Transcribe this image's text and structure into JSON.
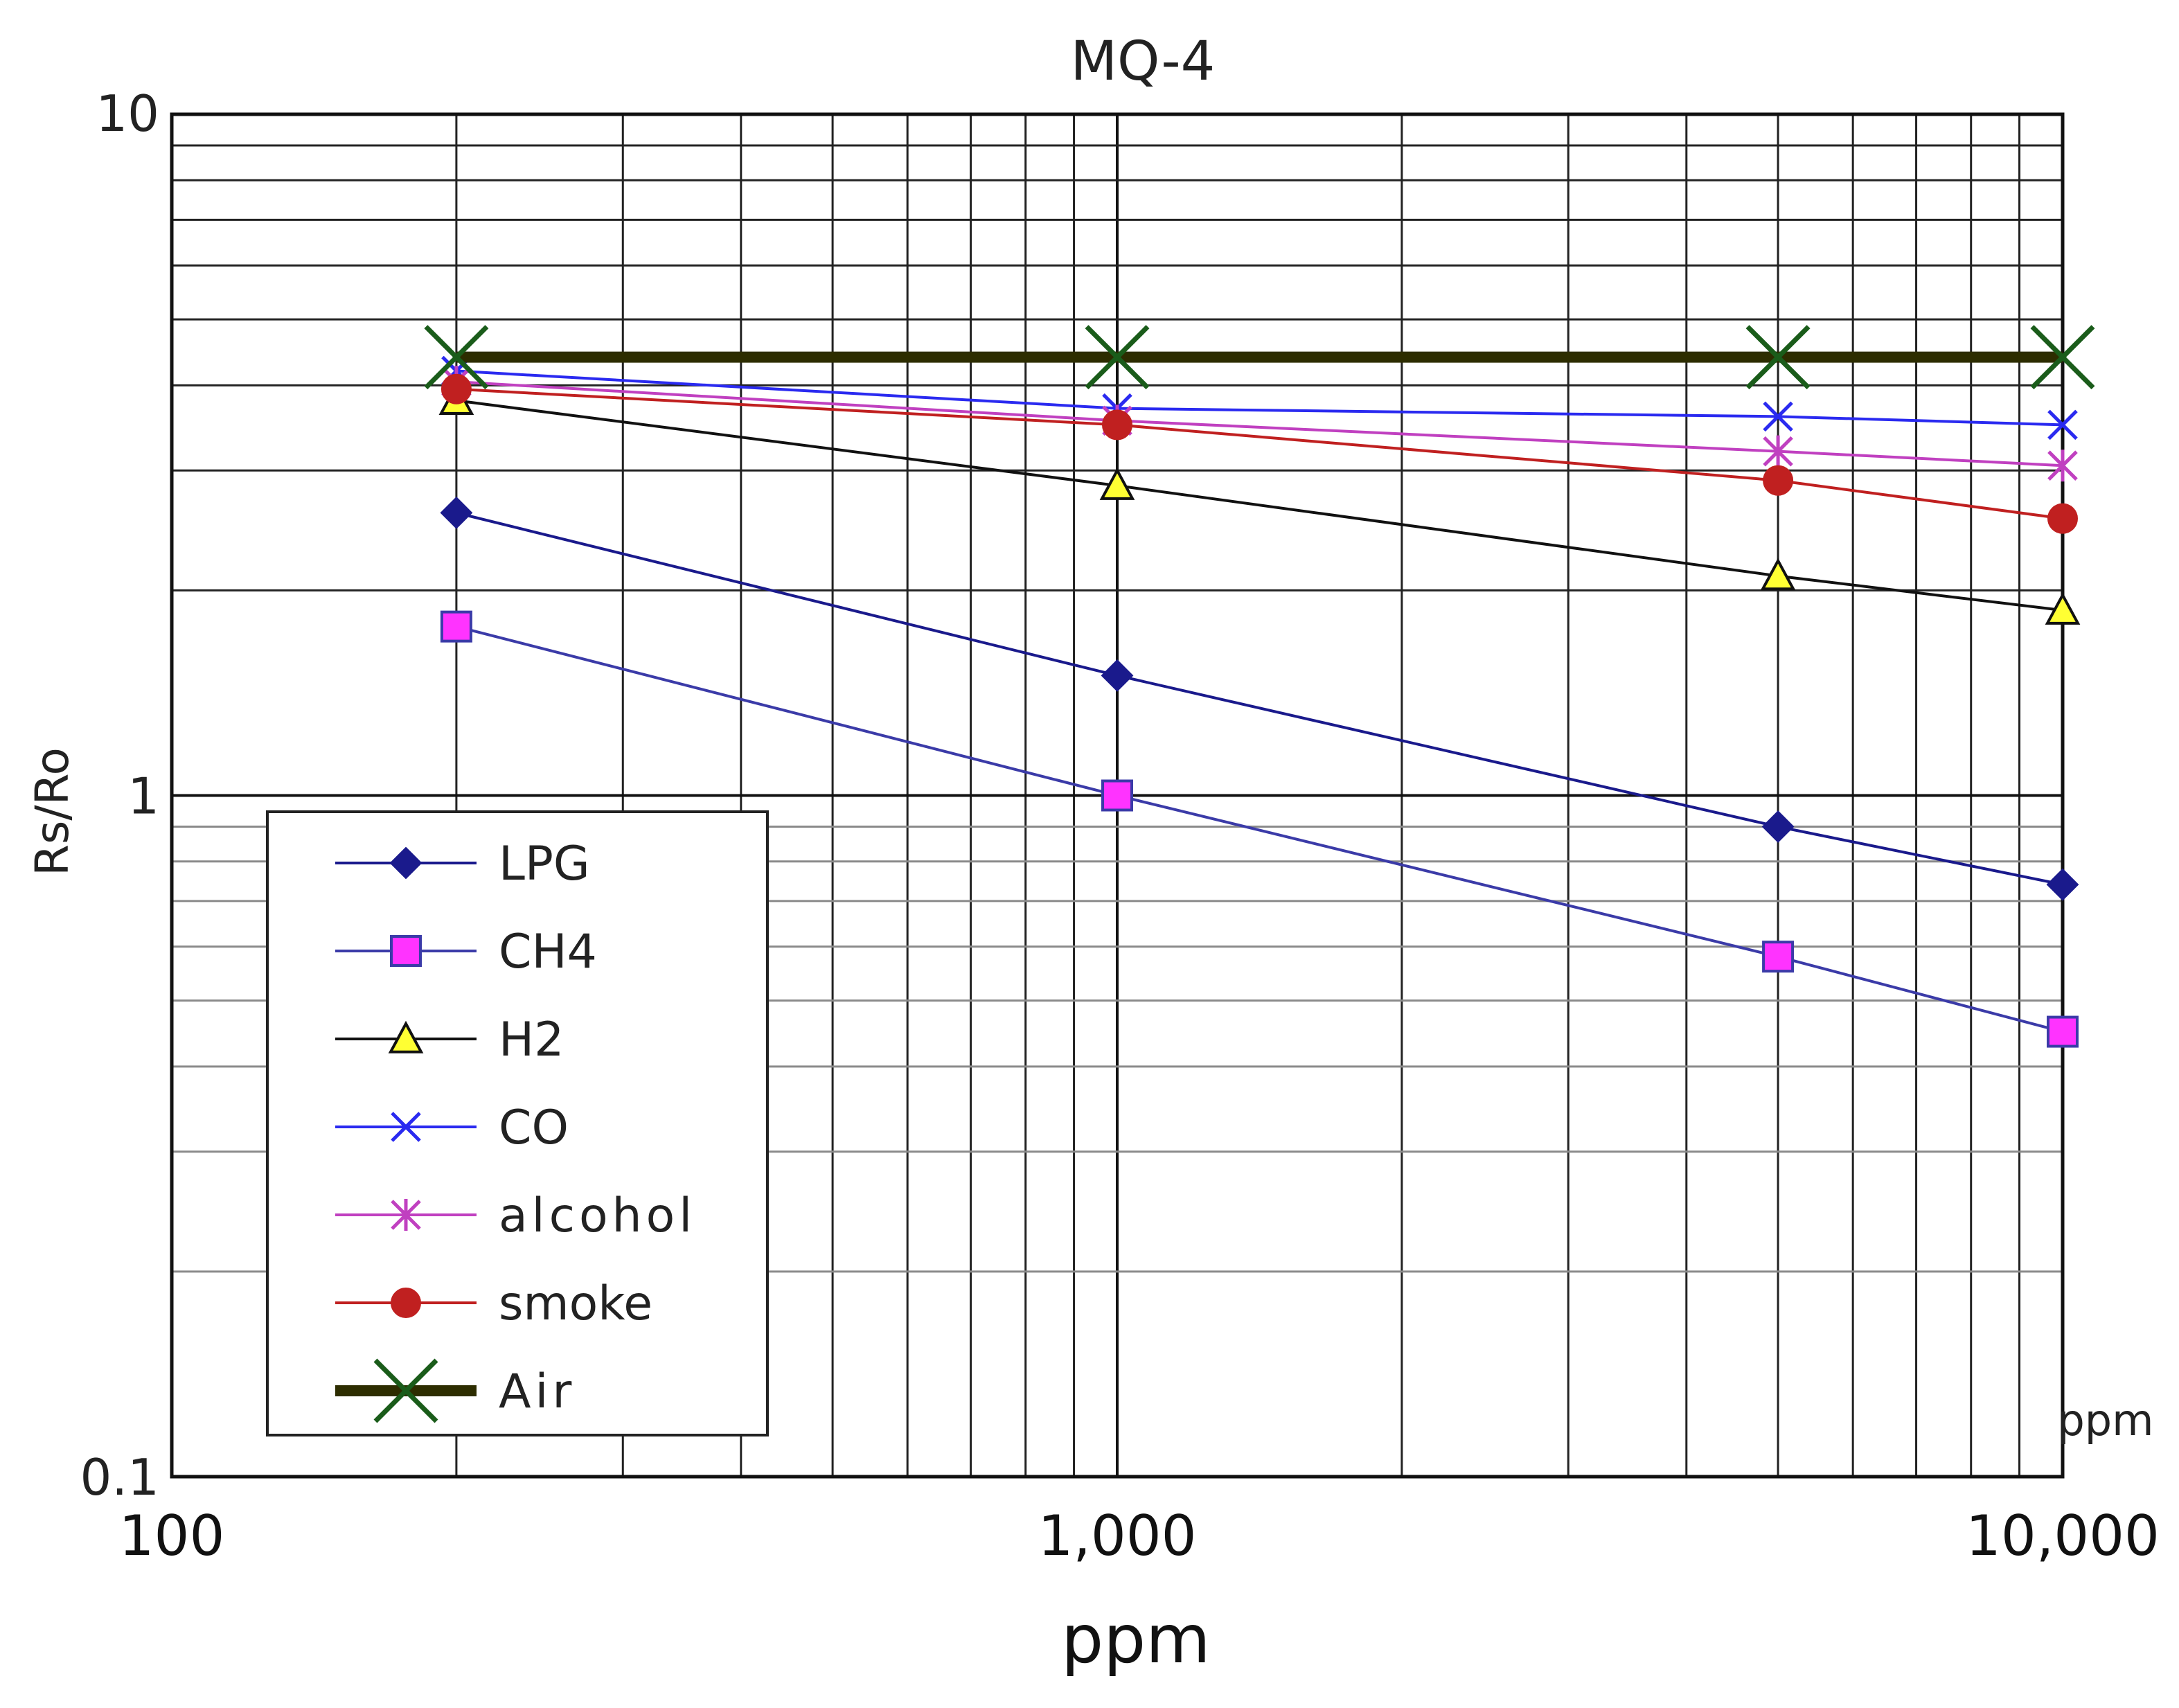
{
  "chart_data": {
    "type": "line",
    "title": "MQ-4",
    "xlabel": "ppm",
    "ylabel": "Rs/Ro",
    "x_scale": "log",
    "y_scale": "log",
    "xlim": [
      100,
      10000
    ],
    "ylim": [
      0.1,
      10
    ],
    "corner_unit_label": "ppm",
    "x_tick_labels": [
      {
        "value": 100,
        "label": "100"
      },
      {
        "value": 1000,
        "label": "1,000"
      },
      {
        "value": 10000,
        "label": "10,000"
      }
    ],
    "y_tick_labels": [
      {
        "value": 10,
        "label": "10"
      },
      {
        "value": 1,
        "label": "1"
      },
      {
        "value": 0.1,
        "label": "0.1"
      }
    ],
    "grid": true,
    "x_gridlines": [
      200,
      300,
      400,
      500,
      600,
      700,
      800,
      900,
      1000,
      2000,
      3000,
      4000,
      5000,
      6000,
      7000,
      8000,
      9000
    ],
    "y_gridlines": [
      0.2,
      0.3,
      0.4,
      0.5,
      0.6,
      0.7,
      0.8,
      0.9,
      1,
      2,
      3,
      4,
      5,
      6,
      7,
      8,
      9
    ],
    "legend_position": "bottom-left",
    "series": [
      {
        "name": "LPG",
        "color": "#1a1a8c",
        "marker": "diamond",
        "x": [
          200,
          1000,
          5000,
          10000
        ],
        "y": [
          2.6,
          1.5,
          0.9,
          0.74
        ]
      },
      {
        "name": "CH4",
        "color": "#3b3ba8",
        "marker_fill": "#ff33ff",
        "marker": "square",
        "x": [
          200,
          1000,
          5000,
          10000
        ],
        "y": [
          1.77,
          1.0,
          0.58,
          0.45
        ]
      },
      {
        "name": "H2",
        "color": "#111111",
        "marker_fill": "#ffff33",
        "marker": "triangle",
        "x": [
          200,
          1000,
          5000,
          10000
        ],
        "y": [
          3.8,
          2.85,
          2.1,
          1.87
        ]
      },
      {
        "name": "CO",
        "color": "#2a2af0",
        "marker": "x",
        "x": [
          200,
          1000,
          5000,
          10000
        ],
        "y": [
          4.2,
          3.7,
          3.6,
          3.5
        ]
      },
      {
        "name": "alcohol",
        "color": "#c040c0",
        "marker": "asterisk",
        "x": [
          200,
          1000,
          5000,
          10000
        ],
        "y": [
          4.05,
          3.55,
          3.2,
          3.05
        ]
      },
      {
        "name": "smoke",
        "color": "#c02020",
        "marker": "circle",
        "x": [
          200,
          1000,
          5000,
          10000
        ],
        "y": [
          3.95,
          3.5,
          2.9,
          2.55
        ]
      },
      {
        "name": "Air",
        "color": "#2d2d00",
        "marker_color": "#1a5c1a",
        "marker": "bigx",
        "x": [
          200,
          1000,
          5000,
          10000
        ],
        "y": [
          4.4,
          4.4,
          4.4,
          4.4
        ]
      }
    ]
  }
}
